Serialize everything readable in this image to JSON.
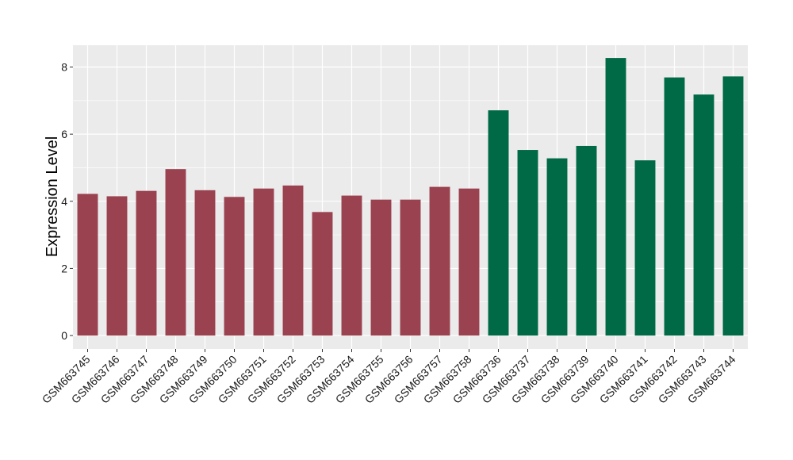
{
  "chart_data": {
    "type": "bar",
    "categories": [
      "GSM663745",
      "GSM663746",
      "GSM663747",
      "GSM663748",
      "GSM663749",
      "GSM663750",
      "GSM663751",
      "GSM663752",
      "GSM663753",
      "GSM663754",
      "GSM663755",
      "GSM663756",
      "GSM663757",
      "GSM663758",
      "GSM663736",
      "GSM663737",
      "GSM663738",
      "GSM663739",
      "GSM663740",
      "GSM663741",
      "GSM663742",
      "GSM663743",
      "GSM663744"
    ],
    "values": [
      4.22,
      4.15,
      4.31,
      4.96,
      4.33,
      4.13,
      4.38,
      4.47,
      3.68,
      4.17,
      4.05,
      4.05,
      4.43,
      4.38,
      6.71,
      5.53,
      5.28,
      5.65,
      8.27,
      5.22,
      7.69,
      7.18,
      7.72
    ],
    "groups": [
      0,
      0,
      0,
      0,
      0,
      0,
      0,
      0,
      0,
      0,
      0,
      0,
      0,
      0,
      1,
      1,
      1,
      1,
      1,
      1,
      1,
      1,
      1
    ],
    "group_colors": [
      "#9a4250",
      "#006946"
    ],
    "title": "",
    "xlabel": "",
    "ylabel": "Expression Level",
    "ylim": [
      -0.4,
      8.65
    ],
    "yticks": [
      0,
      2,
      4,
      6,
      8
    ],
    "grid": true,
    "panel_background": "#ebebeb",
    "grid_color": "#ffffff",
    "legend": "none"
  }
}
